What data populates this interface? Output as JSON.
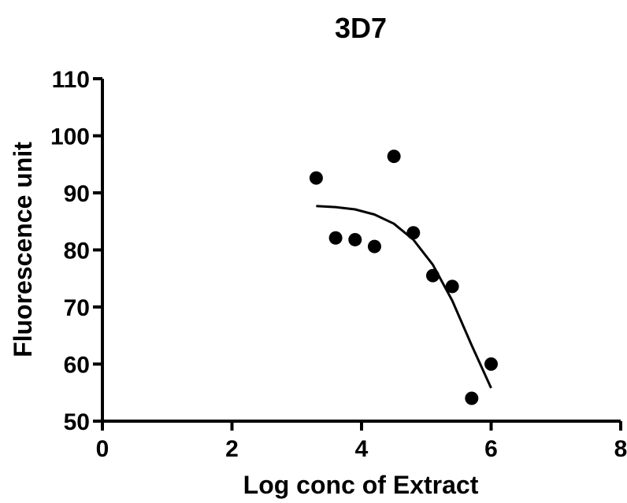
{
  "chart_data": {
    "type": "scatter",
    "title": "3D7",
    "xlabel": "Log conc of Extract",
    "ylabel": "Fluorescence unit",
    "xlim": [
      0,
      8
    ],
    "ylim": [
      50,
      110
    ],
    "x_ticks": [
      "0",
      "2",
      "4",
      "6",
      "8"
    ],
    "y_ticks": [
      "50",
      "60",
      "70",
      "80",
      "90",
      "100",
      "110"
    ],
    "grid": false,
    "legend": "none",
    "points": [
      {
        "x": 3.3,
        "y": 92.6
      },
      {
        "x": 3.6,
        "y": 82.1
      },
      {
        "x": 3.9,
        "y": 81.8
      },
      {
        "x": 4.2,
        "y": 80.6
      },
      {
        "x": 4.5,
        "y": 96.4
      },
      {
        "x": 4.8,
        "y": 83.0
      },
      {
        "x": 5.1,
        "y": 75.5
      },
      {
        "x": 5.4,
        "y": 73.6
      },
      {
        "x": 5.7,
        "y": 54.0
      },
      {
        "x": 6.0,
        "y": 60.0
      }
    ],
    "fit_curve": [
      {
        "x": 3.3,
        "y": 87.7
      },
      {
        "x": 3.6,
        "y": 87.5
      },
      {
        "x": 3.9,
        "y": 87.1
      },
      {
        "x": 4.2,
        "y": 86.2
      },
      {
        "x": 4.5,
        "y": 84.6
      },
      {
        "x": 4.8,
        "y": 81.8
      },
      {
        "x": 5.1,
        "y": 77.4
      },
      {
        "x": 5.4,
        "y": 71.1
      },
      {
        "x": 5.7,
        "y": 63.3
      },
      {
        "x": 6.0,
        "y": 55.8
      }
    ],
    "colors": {
      "points": "#000000",
      "curve": "#000000",
      "axes": "#000000"
    }
  }
}
